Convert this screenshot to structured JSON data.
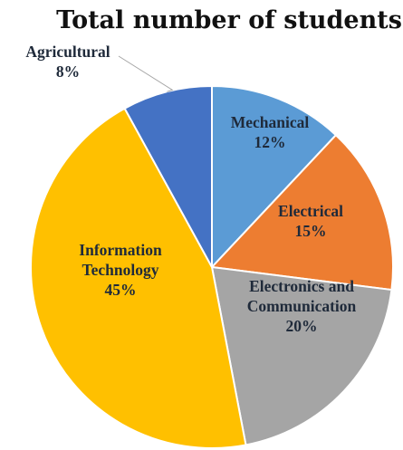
{
  "chart_data": {
    "type": "pie",
    "title": "Total number of students",
    "slices": [
      {
        "name": "Mechanical",
        "label_lines": [
          "Mechanical",
          "12%"
        ],
        "value": 12,
        "color": "#5B9BD5"
      },
      {
        "name": "Electrical",
        "label_lines": [
          "Electrical",
          "15%"
        ],
        "value": 15,
        "color": "#ED7D31"
      },
      {
        "name": "Electronics and Communication",
        "label_lines": [
          "Electronics and",
          "Communication",
          "20%"
        ],
        "value": 20,
        "color": "#A5A5A5"
      },
      {
        "name": "Information Technology",
        "label_lines": [
          "Information",
          "Technology",
          "45%"
        ],
        "value": 45,
        "color": "#FFC000"
      },
      {
        "name": "Agricultural",
        "label_lines": [
          "Agricultural",
          "8%"
        ],
        "value": 8,
        "color": "#4472C4"
      }
    ],
    "start_angle": "12 o'clock",
    "direction": "clockwise",
    "legend": "none"
  }
}
